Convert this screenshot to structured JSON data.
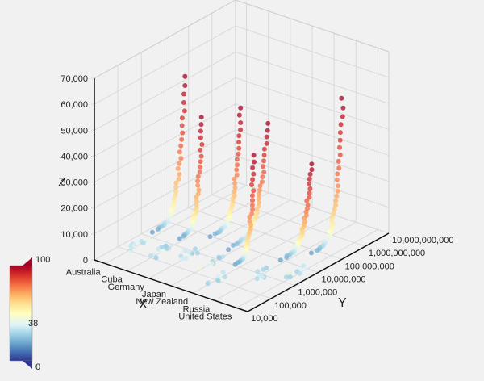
{
  "chart_data": {
    "type": "scatter3d",
    "x_label": "X",
    "y_label": "Y",
    "z_label": "Z",
    "x_categories": [
      "Australia",
      "Cuba",
      "Germany",
      "Japan",
      "New Zealand",
      "Russia",
      "United States"
    ],
    "y_ticks": [
      "10,000",
      "100,000",
      "1,000,000",
      "10,000,000",
      "100,000,000",
      "1,000,000,000",
      "10,000,000,000"
    ],
    "y_scale": "log",
    "z_ticks": [
      "0",
      "10,000",
      "20,000",
      "30,000",
      "40,000",
      "50,000",
      "60,000",
      "70,000"
    ],
    "z_range": [
      0,
      70000
    ],
    "colorscale": {
      "ticks": [
        "100",
        "38",
        "0"
      ],
      "range": [
        0,
        100
      ],
      "colors": [
        "#313695",
        "#4575b4",
        "#74add1",
        "#abd9e9",
        "#e0f3f8",
        "#ffffbf",
        "#fee090",
        "#fdae61",
        "#f46d43",
        "#d73027",
        "#a50026"
      ]
    },
    "series": [
      {
        "x": "Australia",
        "y_log_start": 6.0,
        "y_log_end": 7.4,
        "z_start": 2000,
        "z_peak": 55000
      },
      {
        "x": "Cuba",
        "y_log_start": 6.2,
        "y_log_end": 7.2,
        "z_start": 1500,
        "z_peak": 43000
      },
      {
        "x": "Germany",
        "y_log_start": 6.6,
        "y_log_end": 7.9,
        "z_start": 3000,
        "z_peak": 46000
      },
      {
        "x": "Japan",
        "y_log_start": 6.4,
        "y_log_end": 8.1,
        "z_start": 2000,
        "z_peak": 42000
      },
      {
        "x": "New Zealand",
        "y_log_start": 5.8,
        "y_log_end": 6.6,
        "z_start": 2000,
        "z_peak": 40000
      },
      {
        "x": "Russia",
        "y_log_start": 6.8,
        "y_log_end": 8.1,
        "z_start": 1500,
        "z_peak": 32000
      },
      {
        "x": "United States",
        "y_log_start": 7.2,
        "y_log_end": 8.5,
        "z_start": 5000,
        "z_peak": 58000
      }
    ]
  }
}
